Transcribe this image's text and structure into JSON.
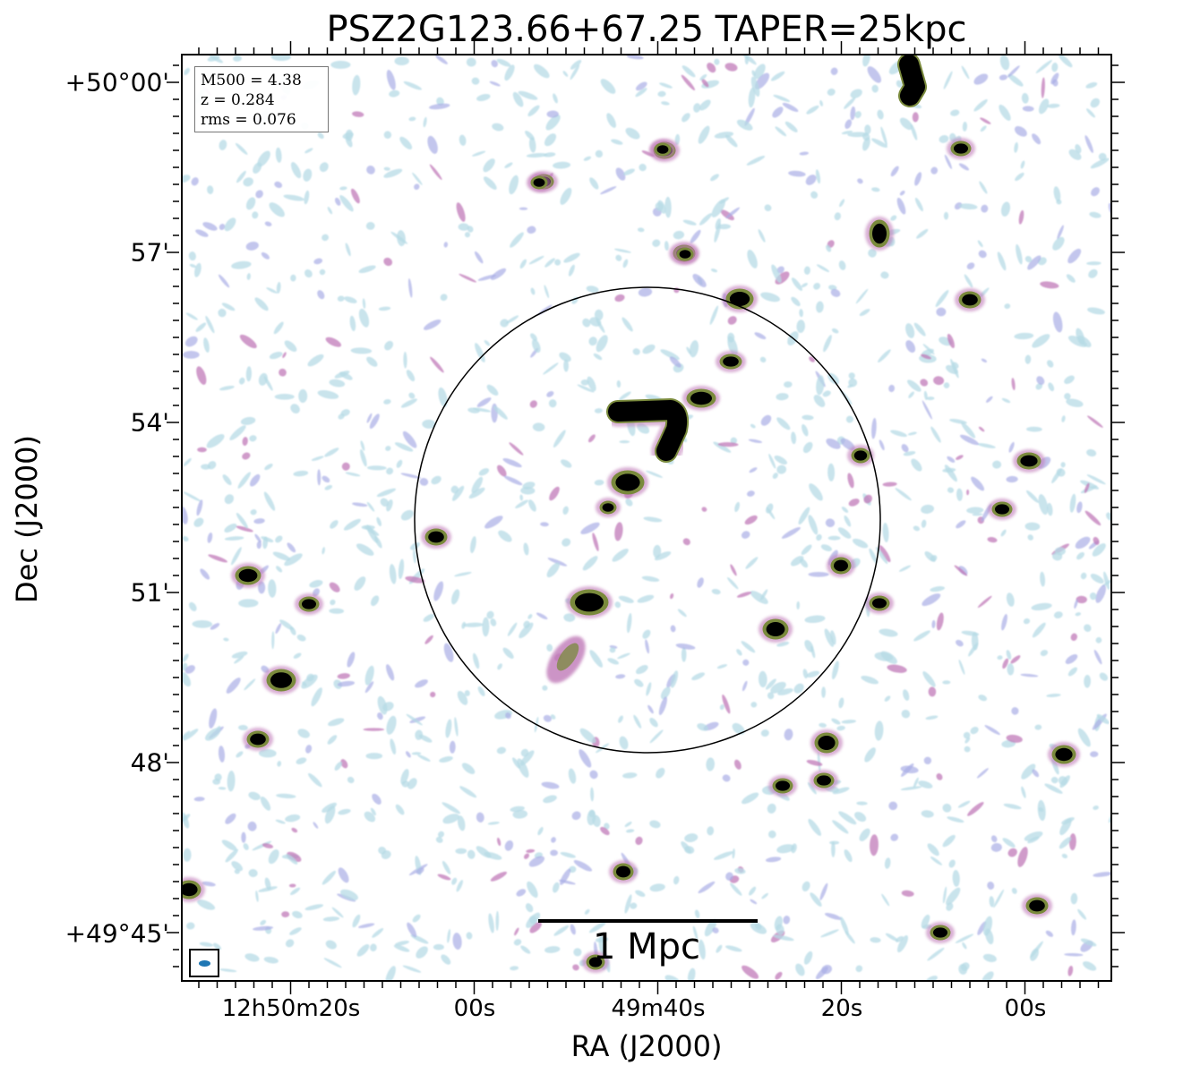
{
  "title": "PSZ2G123.66+67.25 TAPER=25kpc",
  "info": {
    "m500": "M500 = 4.38",
    "z": "z = 0.284",
    "rms": "rms = 0.076"
  },
  "scalebar": {
    "label": "1 Mpc"
  },
  "axes": {
    "xlabel": "RA (J2000)",
    "ylabel": "Dec (J2000)",
    "x_ticks": [
      "12h50m20s",
      "00s",
      "49m40s",
      "20s",
      "00s"
    ],
    "y_ticks": [
      "+50°00'",
      "57'",
      "54'",
      "51'",
      "48'",
      "+49°45'"
    ]
  },
  "colors": {
    "noise_light": "#b7dbe6",
    "noise_mid": "#a9aee6",
    "noise_pink": "#c07ab8",
    "source_mid": "#7a8a3c",
    "source_core": "#000000",
    "beam": "#1f77b4"
  }
}
